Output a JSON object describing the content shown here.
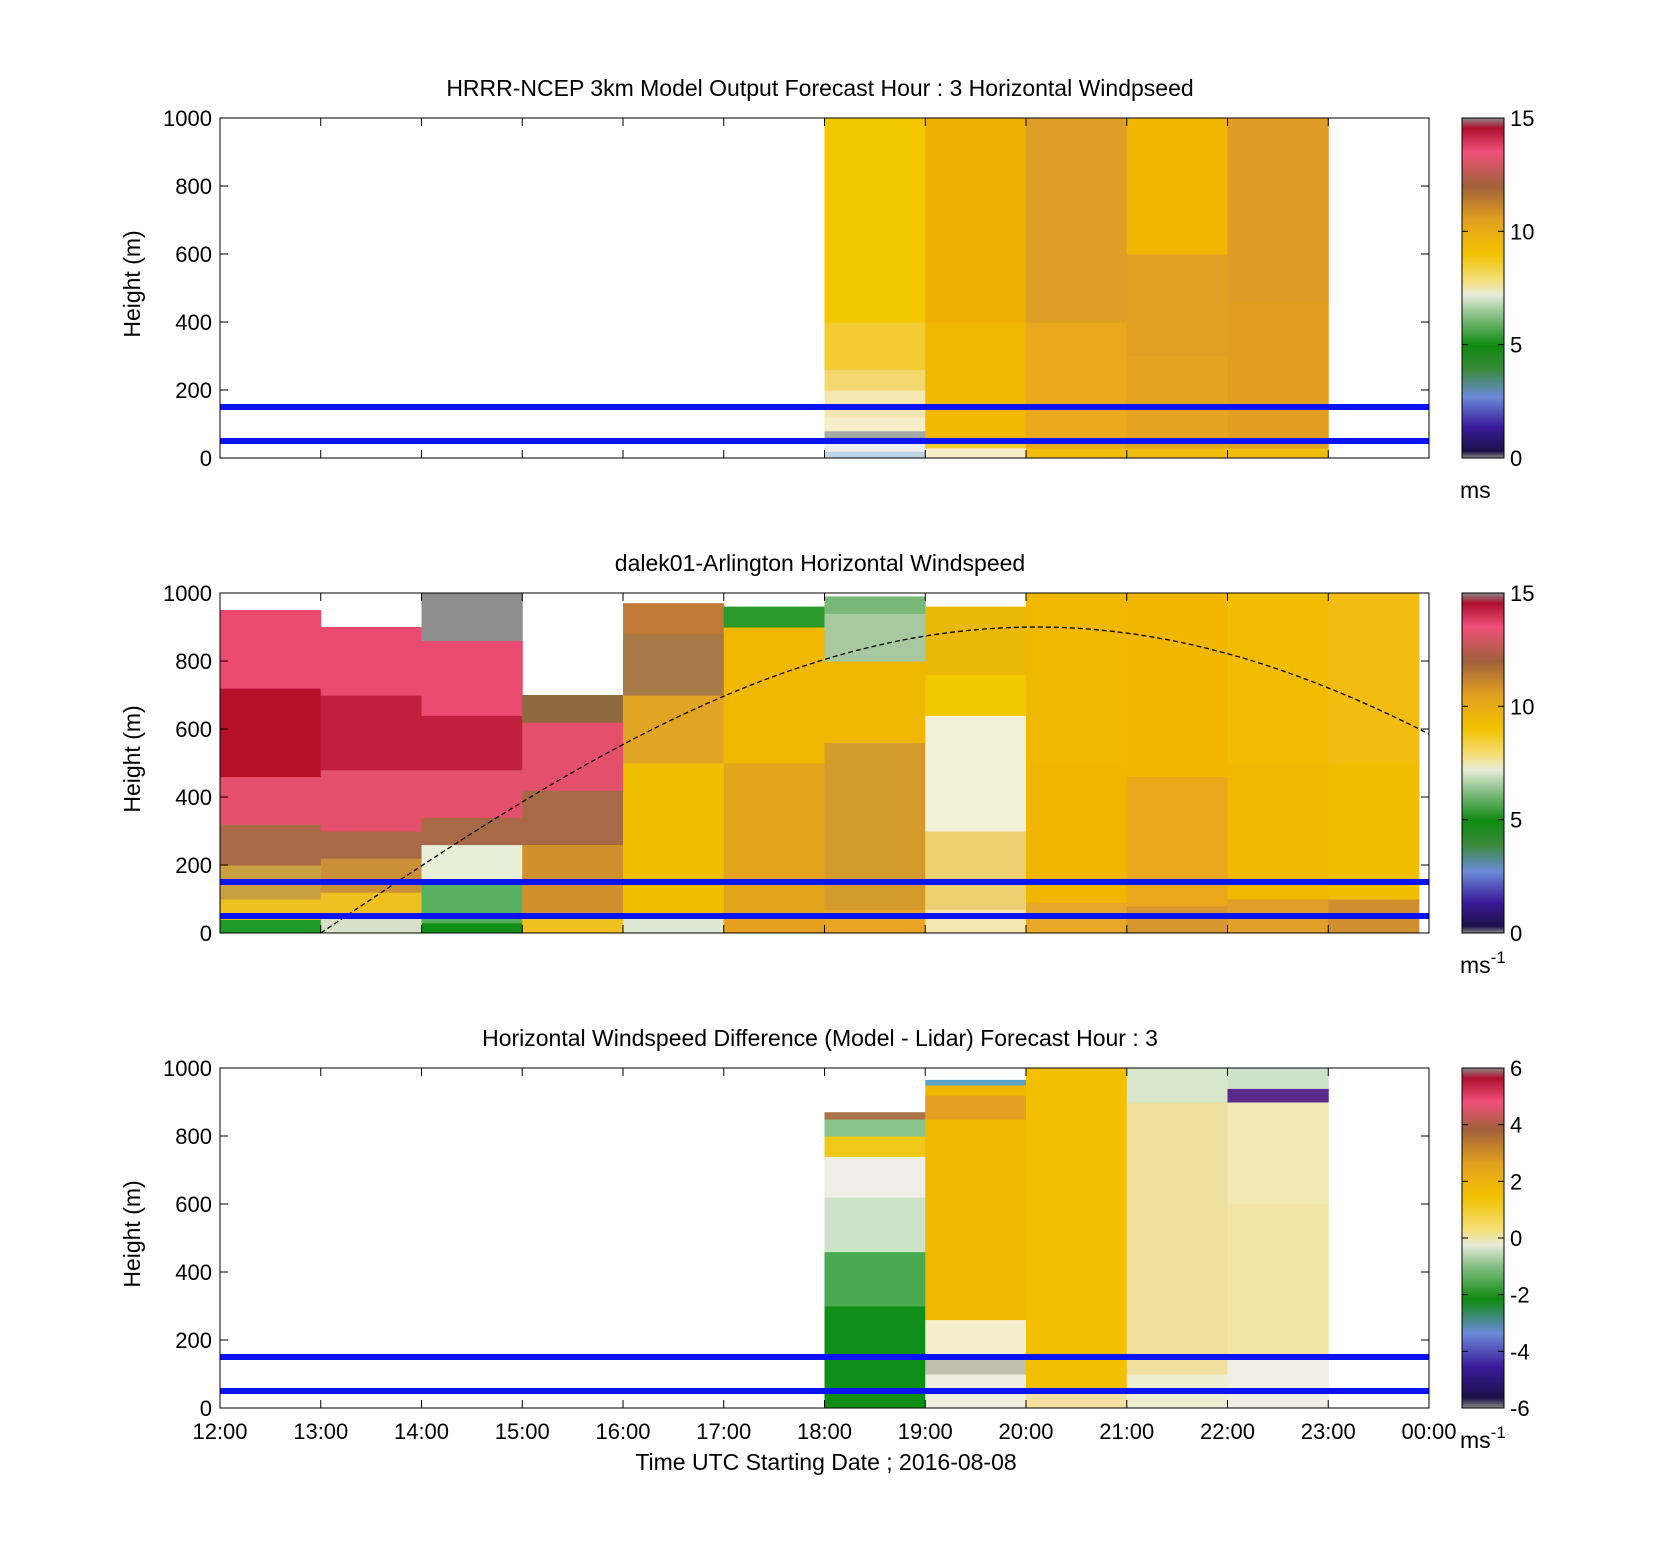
{
  "figure": {
    "xlabel": "Time UTC  Starting Date ; 2016-08-08",
    "x_ticks": [
      "12:00",
      "13:00",
      "14:00",
      "15:00",
      "16:00",
      "17:00",
      "18:00",
      "19:00",
      "20:00",
      "21:00",
      "22:00",
      "23:00",
      "00:00"
    ]
  },
  "chart_data": [
    {
      "type": "heatmap",
      "title": "HRRR-NCEP 3km Model Output   Forecast Hour : 3 Horizontal Windpseed",
      "ylabel": "Height (m)",
      "x_range_hours": [
        12,
        24
      ],
      "ylim": [
        0,
        1000
      ],
      "y_ticks": [
        "0",
        "200",
        "400",
        "600",
        "800",
        "1000"
      ],
      "data_x_range_hours": [
        18,
        23
      ],
      "columns": [
        {
          "start": 18,
          "end": 19,
          "bands": [
            [
              0,
              20,
              "#bcd4e6"
            ],
            [
              20,
              60,
              "#eeeeee"
            ],
            [
              60,
              80,
              "#a6a6a6"
            ],
            [
              80,
              120,
              "#f5eec8"
            ],
            [
              120,
              200,
              "#f4e8b0"
            ],
            [
              200,
              260,
              "#f3d870"
            ],
            [
              260,
              400,
              "#f2cc30"
            ],
            [
              400,
              1000,
              "#f4c800"
            ]
          ]
        },
        {
          "start": 19,
          "end": 20,
          "bands": [
            [
              0,
              30,
              "#f5eec8"
            ],
            [
              30,
              60,
              "#f2cc30"
            ],
            [
              60,
              400,
              "#f0b800"
            ],
            [
              400,
              1000,
              "#eeb000"
            ]
          ]
        },
        {
          "start": 20,
          "end": 21,
          "bands": [
            [
              0,
              30,
              "#f0bc10"
            ],
            [
              30,
              400,
              "#eaa81c"
            ],
            [
              400,
              1000,
              "#df9e27"
            ]
          ]
        },
        {
          "start": 21,
          "end": 22,
          "bands": [
            [
              0,
              30,
              "#f0bc10"
            ],
            [
              30,
              300,
              "#e4a422"
            ],
            [
              300,
              600,
              "#e2a022"
            ],
            [
              600,
              1000,
              "#f0b600"
            ]
          ]
        },
        {
          "start": 22,
          "end": 23,
          "bands": [
            [
              0,
              30,
              "#f0bc10"
            ],
            [
              30,
              460,
              "#e29e22"
            ],
            [
              460,
              1000,
              "#df9c27"
            ]
          ]
        }
      ],
      "reference_lines_m": [
        50,
        150
      ],
      "colorbar": {
        "ticks": [
          "0",
          "5",
          "10",
          "15"
        ],
        "range": [
          0,
          15
        ],
        "unit": "ms",
        "unit_exp": ""
      }
    },
    {
      "type": "heatmap",
      "title": "dalek01-Arlington  Horizontal Windspeed",
      "ylabel": "Height (m)",
      "x_range_hours": [
        12,
        24
      ],
      "ylim": [
        0,
        1000
      ],
      "y_ticks": [
        "0",
        "200",
        "400",
        "600",
        "800",
        "1000"
      ],
      "data_x_range_hours": [
        12,
        23.9
      ],
      "columns": [
        {
          "start": 12,
          "end": 13,
          "bands": [
            [
              0,
              40,
              "#1f9a2a"
            ],
            [
              40,
              100,
              "#f0c020"
            ],
            [
              100,
              200,
              "#c9a040"
            ],
            [
              200,
              320,
              "#a86a46"
            ],
            [
              320,
              460,
              "#e4506c"
            ],
            [
              460,
              720,
              "#b5102a"
            ],
            [
              720,
              950,
              "#ea4a70"
            ]
          ]
        },
        {
          "start": 13,
          "end": 14,
          "bands": [
            [
              0,
              50,
              "#d8e0c8"
            ],
            [
              50,
              120,
              "#f0c020"
            ],
            [
              120,
              220,
              "#c99038"
            ],
            [
              220,
              300,
              "#a86a46"
            ],
            [
              300,
              480,
              "#e4506c"
            ],
            [
              480,
              700,
              "#c0203e"
            ],
            [
              700,
              900,
              "#ea4a70"
            ]
          ]
        },
        {
          "start": 14,
          "end": 15,
          "bands": [
            [
              0,
              30,
              "#108f18"
            ],
            [
              30,
              150,
              "#56b060"
            ],
            [
              150,
              260,
              "#e7efd7"
            ],
            [
              260,
              340,
              "#a86a46"
            ],
            [
              340,
              480,
              "#e4506c"
            ],
            [
              480,
              640,
              "#c0203e"
            ],
            [
              640,
              860,
              "#ea4a70"
            ],
            [
              860,
              1000,
              "#8e8e8e"
            ]
          ]
        },
        {
          "start": 15,
          "end": 16,
          "bands": [
            [
              0,
              60,
              "#f0c020"
            ],
            [
              60,
              260,
              "#d0902e"
            ],
            [
              260,
              420,
              "#a86a46"
            ],
            [
              420,
              620,
              "#e4506c"
            ],
            [
              620,
              700,
              "#8f6a3e"
            ]
          ]
        },
        {
          "start": 16,
          "end": 17,
          "bands": [
            [
              0,
              60,
              "#dce8d2"
            ],
            [
              60,
              500,
              "#f0c000"
            ],
            [
              500,
              700,
              "#e2a424"
            ],
            [
              700,
              880,
              "#a87a48"
            ],
            [
              880,
              970,
              "#c07a36"
            ]
          ]
        },
        {
          "start": 17,
          "end": 18,
          "bands": [
            [
              0,
              60,
              "#e8a020"
            ],
            [
              60,
              500,
              "#e4a41e"
            ],
            [
              500,
              900,
              "#f0b800"
            ],
            [
              900,
              960,
              "#2a9a2a"
            ]
          ]
        },
        {
          "start": 18,
          "end": 19,
          "bands": [
            [
              0,
              70,
              "#e9a424"
            ],
            [
              70,
              560,
              "#d59a2c"
            ],
            [
              560,
              800,
              "#f0b800"
            ],
            [
              800,
              940,
              "#a8c8a0"
            ],
            [
              940,
              990,
              "#7ab87a"
            ]
          ]
        },
        {
          "start": 19,
          "end": 20,
          "bands": [
            [
              0,
              70,
              "#f4e6b0"
            ],
            [
              70,
              300,
              "#eed070"
            ],
            [
              300,
              640,
              "#f4f0d8"
            ],
            [
              640,
              760,
              "#f2c800"
            ],
            [
              760,
              960,
              "#eab808"
            ]
          ]
        },
        {
          "start": 20,
          "end": 21,
          "bands": [
            [
              0,
              90,
              "#e8a828"
            ],
            [
              90,
              500,
              "#f0b600"
            ],
            [
              500,
              1000,
              "#f0b800"
            ]
          ]
        },
        {
          "start": 21,
          "end": 22,
          "bands": [
            [
              0,
              80,
              "#d89630"
            ],
            [
              80,
              460,
              "#eaa81c"
            ],
            [
              460,
              1000,
              "#f0b600"
            ]
          ]
        },
        {
          "start": 22,
          "end": 23,
          "bands": [
            [
              0,
              100,
              "#e0a02a"
            ],
            [
              100,
              500,
              "#f0b800"
            ],
            [
              500,
              1000,
              "#f2bc00"
            ]
          ]
        },
        {
          "start": 23,
          "end": 23.9,
          "bands": [
            [
              0,
              100,
              "#d09030"
            ],
            [
              100,
              500,
              "#f0c000"
            ],
            [
              500,
              1000,
              "#f2bc10"
            ]
          ]
        }
      ],
      "reference_lines_m": [
        50,
        150
      ],
      "colorbar": {
        "ticks": [
          "0",
          "5",
          "10",
          "15"
        ],
        "range": [
          0,
          15
        ],
        "unit": "ms",
        "unit_exp": "-1"
      }
    },
    {
      "type": "heatmap",
      "title": "Horizontal Windspeed Difference (Model - Lidar) Forecast Hour : 3",
      "ylabel": "Height (m)",
      "x_range_hours": [
        12,
        24
      ],
      "ylim": [
        0,
        1000
      ],
      "y_ticks": [
        "0",
        "200",
        "400",
        "600",
        "800",
        "1000"
      ],
      "data_x_range_hours": [
        18,
        23
      ],
      "columns": [
        {
          "start": 18,
          "end": 19,
          "bands": [
            [
              0,
              300,
              "#108f18"
            ],
            [
              300,
              460,
              "#4aaa52"
            ],
            [
              460,
              620,
              "#cde3c8"
            ],
            [
              620,
              740,
              "#eeeee6"
            ],
            [
              740,
              800,
              "#f0c818"
            ],
            [
              800,
              850,
              "#8ac48a"
            ],
            [
              850,
              870,
              "#a87448"
            ]
          ]
        },
        {
          "start": 19,
          "end": 20,
          "bands": [
            [
              0,
              100,
              "#eeeee0"
            ],
            [
              100,
              150,
              "#c0c0b0"
            ],
            [
              150,
              260,
              "#f5eecc"
            ],
            [
              260,
              850,
              "#f0b800"
            ],
            [
              850,
              920,
              "#e6a022"
            ],
            [
              920,
              950,
              "#f0b800"
            ],
            [
              950,
              965,
              "#5aa0c8"
            ]
          ]
        },
        {
          "start": 20,
          "end": 21,
          "bands": [
            [
              0,
              60,
              "#f4e0a0"
            ],
            [
              60,
              1000,
              "#f2c000"
            ]
          ]
        },
        {
          "start": 21,
          "end": 22,
          "bands": [
            [
              0,
              100,
              "#eeeed2"
            ],
            [
              100,
              900,
              "#f0e0a0"
            ],
            [
              900,
              1000,
              "#d8e6cc"
            ]
          ]
        },
        {
          "start": 22,
          "end": 23,
          "bands": [
            [
              0,
              150,
              "#eeeee4"
            ],
            [
              150,
              600,
              "#f2e4a4"
            ],
            [
              600,
              900,
              "#f3e8b4"
            ],
            [
              900,
              940,
              "#5a2a8a"
            ],
            [
              940,
              1000,
              "#cde3c8"
            ]
          ]
        }
      ],
      "reference_lines_m": [
        50,
        150
      ],
      "colorbar": {
        "ticks": [
          "-6",
          "-4",
          "-2",
          "0",
          "2",
          "4",
          "6"
        ],
        "range": [
          -6,
          6
        ],
        "unit": "ms",
        "unit_exp": "-1"
      }
    }
  ],
  "colors": {
    "reference_line": "#0a14f0",
    "windspeed_stops": [
      [
        0,
        "#8a8a8a"
      ],
      [
        0.02,
        "#1c1048"
      ],
      [
        0.09,
        "#3a1a9a"
      ],
      [
        0.18,
        "#6a8ad8"
      ],
      [
        0.26,
        "#3a8a3a"
      ],
      [
        0.33,
        "#108a10"
      ],
      [
        0.42,
        "#8ac08a"
      ],
      [
        0.48,
        "#e8ecd8"
      ],
      [
        0.52,
        "#f4e080"
      ],
      [
        0.6,
        "#f2c200"
      ],
      [
        0.7,
        "#e2a020"
      ],
      [
        0.8,
        "#a0603c"
      ],
      [
        0.9,
        "#f0507a"
      ],
      [
        0.97,
        "#b0102e"
      ],
      [
        1,
        "#8a8a8a"
      ]
    ],
    "difference_stops": [
      [
        0,
        "#8a8a8a"
      ],
      [
        0.03,
        "#1c1048"
      ],
      [
        0.12,
        "#3a1a9a"
      ],
      [
        0.22,
        "#6a8ad8"
      ],
      [
        0.32,
        "#108a10"
      ],
      [
        0.42,
        "#8ac08a"
      ],
      [
        0.48,
        "#e8ecd8"
      ],
      [
        0.52,
        "#f4e080"
      ],
      [
        0.62,
        "#f2c200"
      ],
      [
        0.72,
        "#e2a020"
      ],
      [
        0.82,
        "#a0603c"
      ],
      [
        0.9,
        "#f0507a"
      ],
      [
        0.97,
        "#b0102e"
      ],
      [
        1,
        "#8a8a8a"
      ]
    ]
  }
}
